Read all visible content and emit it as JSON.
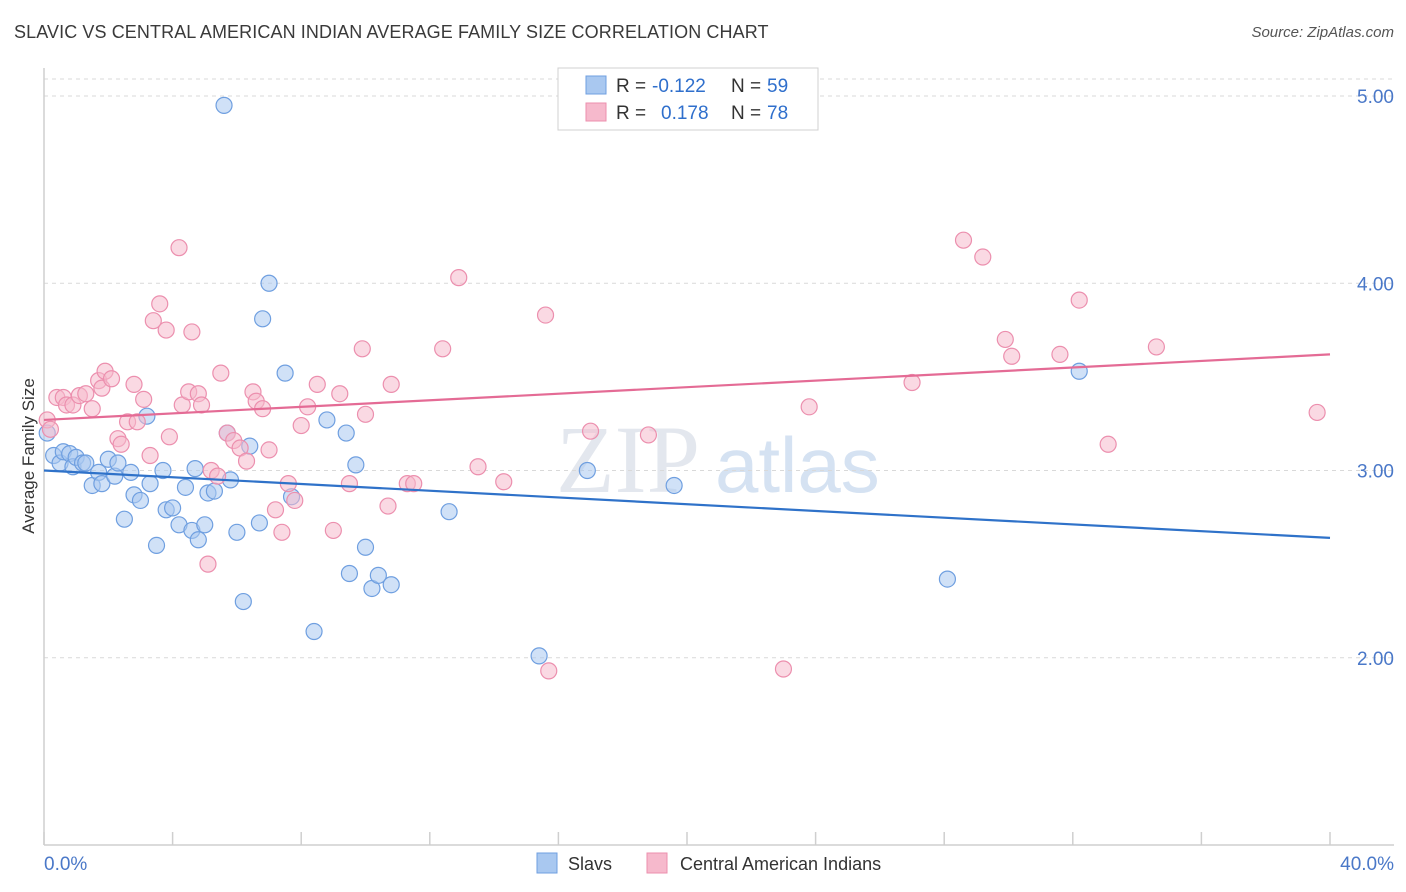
{
  "title": "SLAVIC VS CENTRAL AMERICAN INDIAN AVERAGE FAMILY SIZE CORRELATION CHART",
  "source": "Source: ZipAtlas.com",
  "watermark": {
    "zip": "ZIP",
    "atlas": "atlas"
  },
  "colors": {
    "blue_fill": "#a9c8f0",
    "blue_stroke": "#6f9fe0",
    "blue_line": "#2f72c9",
    "pink_fill": "#f6b9cc",
    "pink_stroke": "#ec8fae",
    "pink_line": "#e46b95",
    "tick": "#4a78c8",
    "grid": "#d9d9d9"
  },
  "legend": {
    "rows": [
      {
        "r_label": "R =",
        "r_value": "-0.122",
        "n_label": "N =",
        "n_value": "59",
        "series": "blue"
      },
      {
        "r_label": "R =",
        "r_value": "0.178",
        "n_label": "N =",
        "n_value": "78",
        "series": "pink"
      }
    ]
  },
  "chart_data": {
    "type": "scatter",
    "title": "SLAVIC VS CENTRAL AMERICAN INDIAN AVERAGE FAMILY SIZE CORRELATION CHART",
    "xlabel": "",
    "ylabel": "Average Family Size",
    "xlim": [
      0,
      40
    ],
    "ylim": [
      1.0,
      5.1
    ],
    "x_tick_labels": [
      "0.0%",
      "40.0%"
    ],
    "y_ticks": [
      2.0,
      3.0,
      4.0,
      5.0
    ],
    "y_tick_labels": [
      "2.00",
      "3.00",
      "4.00",
      "5.00"
    ],
    "grid": "horizontal dashed",
    "legend_placement": "top-center",
    "series": [
      {
        "name": "Slavs",
        "color": "blue",
        "trend": {
          "x": [
            0,
            40
          ],
          "y": [
            3.0,
            2.64
          ]
        },
        "points": [
          [
            0.1,
            3.2
          ],
          [
            0.3,
            3.08
          ],
          [
            0.5,
            3.04
          ],
          [
            0.6,
            3.1
          ],
          [
            0.8,
            3.09
          ],
          [
            0.9,
            3.02
          ],
          [
            1.0,
            3.07
          ],
          [
            1.2,
            3.04
          ],
          [
            1.3,
            3.04
          ],
          [
            1.5,
            2.92
          ],
          [
            1.7,
            2.99
          ],
          [
            1.8,
            2.93
          ],
          [
            2.0,
            3.06
          ],
          [
            2.2,
            2.97
          ],
          [
            2.3,
            3.04
          ],
          [
            2.5,
            2.74
          ],
          [
            2.7,
            2.99
          ],
          [
            2.8,
            2.87
          ],
          [
            3.0,
            2.84
          ],
          [
            3.2,
            3.29
          ],
          [
            3.3,
            2.93
          ],
          [
            3.5,
            2.6
          ],
          [
            3.7,
            3.0
          ],
          [
            3.8,
            2.79
          ],
          [
            4.0,
            2.8
          ],
          [
            4.2,
            2.71
          ],
          [
            4.4,
            2.91
          ],
          [
            4.6,
            2.68
          ],
          [
            4.7,
            3.01
          ],
          [
            4.8,
            2.63
          ],
          [
            5.0,
            2.71
          ],
          [
            5.1,
            2.88
          ],
          [
            5.3,
            2.89
          ],
          [
            5.6,
            4.95
          ],
          [
            5.7,
            3.2
          ],
          [
            5.8,
            2.95
          ],
          [
            6.0,
            2.67
          ],
          [
            6.2,
            2.3
          ],
          [
            6.4,
            3.13
          ],
          [
            6.7,
            2.72
          ],
          [
            6.8,
            3.81
          ],
          [
            7.0,
            4.0
          ],
          [
            7.5,
            3.52
          ],
          [
            7.7,
            2.86
          ],
          [
            8.4,
            2.14
          ],
          [
            8.8,
            3.27
          ],
          [
            9.4,
            3.2
          ],
          [
            9.5,
            2.45
          ],
          [
            9.7,
            3.03
          ],
          [
            10.0,
            2.59
          ],
          [
            10.2,
            2.37
          ],
          [
            10.4,
            2.44
          ],
          [
            10.8,
            2.39
          ],
          [
            12.6,
            2.78
          ],
          [
            15.4,
            2.01
          ],
          [
            16.9,
            3.0
          ],
          [
            19.6,
            2.92
          ],
          [
            28.1,
            2.42
          ],
          [
            32.2,
            3.53
          ]
        ]
      },
      {
        "name": "Central American Indians",
        "color": "pink",
        "trend": {
          "x": [
            0,
            40
          ],
          "y": [
            3.27,
            3.62
          ]
        },
        "points": [
          [
            0.1,
            3.27
          ],
          [
            0.2,
            3.22
          ],
          [
            0.4,
            3.39
          ],
          [
            0.6,
            3.39
          ],
          [
            0.7,
            3.35
          ],
          [
            0.9,
            3.35
          ],
          [
            1.1,
            3.4
          ],
          [
            1.3,
            3.41
          ],
          [
            1.5,
            3.33
          ],
          [
            1.7,
            3.48
          ],
          [
            1.8,
            3.44
          ],
          [
            1.9,
            3.53
          ],
          [
            2.1,
            3.49
          ],
          [
            2.3,
            3.17
          ],
          [
            2.4,
            3.14
          ],
          [
            2.6,
            3.26
          ],
          [
            2.8,
            3.46
          ],
          [
            2.9,
            3.26
          ],
          [
            3.1,
            3.38
          ],
          [
            3.3,
            3.08
          ],
          [
            3.4,
            3.8
          ],
          [
            3.6,
            3.89
          ],
          [
            3.8,
            3.75
          ],
          [
            3.9,
            3.18
          ],
          [
            4.2,
            4.19
          ],
          [
            4.3,
            3.35
          ],
          [
            4.5,
            3.42
          ],
          [
            4.6,
            3.74
          ],
          [
            4.8,
            3.41
          ],
          [
            4.9,
            3.35
          ],
          [
            5.1,
            2.5
          ],
          [
            5.2,
            3.0
          ],
          [
            5.4,
            2.97
          ],
          [
            5.5,
            3.52
          ],
          [
            5.7,
            3.2
          ],
          [
            5.9,
            3.16
          ],
          [
            6.1,
            3.12
          ],
          [
            6.3,
            3.05
          ],
          [
            6.5,
            3.42
          ],
          [
            6.6,
            3.37
          ],
          [
            6.8,
            3.33
          ],
          [
            7.0,
            3.11
          ],
          [
            7.2,
            2.79
          ],
          [
            7.4,
            2.67
          ],
          [
            7.6,
            2.93
          ],
          [
            7.8,
            2.84
          ],
          [
            8.0,
            3.24
          ],
          [
            8.2,
            3.34
          ],
          [
            8.5,
            3.46
          ],
          [
            9.0,
            2.68
          ],
          [
            9.2,
            3.41
          ],
          [
            9.5,
            2.93
          ],
          [
            9.9,
            3.65
          ],
          [
            10.0,
            3.3
          ],
          [
            10.7,
            2.81
          ],
          [
            10.8,
            3.46
          ],
          [
            11.3,
            2.93
          ],
          [
            11.5,
            2.93
          ],
          [
            12.4,
            3.65
          ],
          [
            12.9,
            4.03
          ],
          [
            13.5,
            3.02
          ],
          [
            14.3,
            2.94
          ],
          [
            15.6,
            3.83
          ],
          [
            15.7,
            1.93
          ],
          [
            17.0,
            3.21
          ],
          [
            18.8,
            3.19
          ],
          [
            23.0,
            1.94
          ],
          [
            23.8,
            3.34
          ],
          [
            27.0,
            3.47
          ],
          [
            28.6,
            4.23
          ],
          [
            29.2,
            4.14
          ],
          [
            29.9,
            3.7
          ],
          [
            30.1,
            3.61
          ],
          [
            31.6,
            3.62
          ],
          [
            32.2,
            3.91
          ],
          [
            33.1,
            3.14
          ],
          [
            34.6,
            3.66
          ],
          [
            39.6,
            3.31
          ]
        ]
      }
    ]
  }
}
